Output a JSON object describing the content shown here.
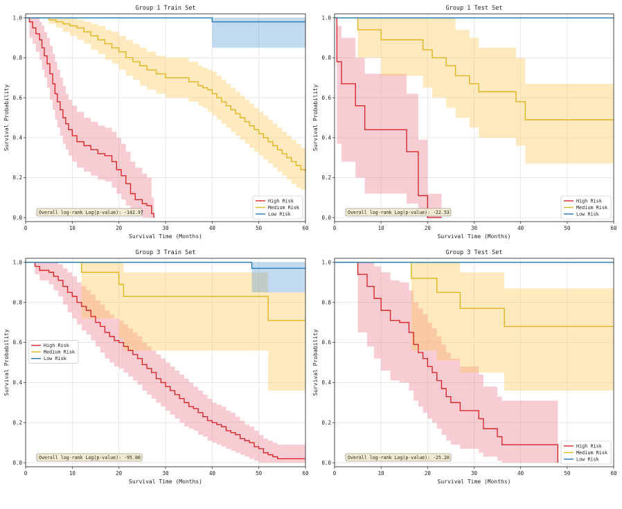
{
  "chart_data": [
    {
      "type": "line",
      "title": "Group 1 Train Set",
      "xlabel": "Survival Time (Months)",
      "ylabel": "Survival Probability",
      "xlim": [
        0,
        60
      ],
      "ylim": [
        -0.02,
        1.02
      ],
      "xticks": [
        "0",
        "10",
        "20",
        "30",
        "40",
        "50",
        "60"
      ],
      "yticks": [
        "0.0",
        "0.2",
        "0.4",
        "0.6",
        "0.8",
        "1.0"
      ],
      "grid": true,
      "legend": "bottom-right",
      "annotation": "Overall log-rank Log(p-value): -142.97",
      "series": [
        {
          "name": "High Risk",
          "color": "#d62728",
          "x": [
            0,
            0.8,
            1.5,
            2.2,
            3,
            3.5,
            4,
            4.6,
            5.2,
            5.8,
            6.3,
            6.8,
            7.4,
            8,
            8.6,
            9.2,
            10,
            11,
            12.5,
            14,
            15.5,
            17,
            18.5,
            19.5,
            20.5,
            21.5,
            22.5,
            23.5,
            25,
            26,
            27,
            27.5
          ],
          "y": [
            1,
            0.98,
            0.95,
            0.92,
            0.89,
            0.85,
            0.81,
            0.77,
            0.72,
            0.67,
            0.62,
            0.58,
            0.54,
            0.5,
            0.47,
            0.44,
            0.41,
            0.38,
            0.36,
            0.34,
            0.32,
            0.31,
            0.28,
            0.24,
            0.21,
            0.17,
            0.12,
            0.09,
            0.07,
            0.06,
            0.02,
            0.0
          ],
          "ci_upper": [
            1,
            1,
            1,
            1,
            0.98,
            0.96,
            0.93,
            0.9,
            0.86,
            0.82,
            0.78,
            0.74,
            0.7,
            0.66,
            0.62,
            0.59,
            0.56,
            0.53,
            0.5,
            0.48,
            0.46,
            0.45,
            0.43,
            0.4,
            0.37,
            0.33,
            0.28,
            0.25,
            0.22,
            0.2,
            0.1,
            0.06
          ],
          "ci_lower": [
            1,
            0.9,
            0.87,
            0.83,
            0.79,
            0.74,
            0.7,
            0.65,
            0.59,
            0.54,
            0.49,
            0.45,
            0.41,
            0.37,
            0.34,
            0.31,
            0.28,
            0.25,
            0.23,
            0.21,
            0.19,
            0.18,
            0.15,
            0.12,
            0.09,
            0.06,
            0.03,
            0.01,
            0.0,
            0.0,
            0.0,
            0.0
          ]
        },
        {
          "name": "Medium Risk",
          "color": "#e0b41c",
          "x": [
            0,
            5,
            6.5,
            8,
            9.5,
            11,
            12.5,
            14,
            15.5,
            17,
            18.5,
            20,
            21.5,
            23,
            24.5,
            26,
            28,
            30,
            33,
            35,
            37,
            38,
            39,
            40,
            41,
            42,
            43,
            44,
            45,
            46,
            47,
            48,
            49,
            50,
            51,
            52,
            53,
            54,
            55,
            56,
            57,
            58,
            59,
            60
          ],
          "y": [
            1,
            0.99,
            0.98,
            0.97,
            0.96,
            0.95,
            0.93,
            0.91,
            0.89,
            0.87,
            0.85,
            0.83,
            0.8,
            0.78,
            0.76,
            0.74,
            0.72,
            0.7,
            0.7,
            0.68,
            0.66,
            0.65,
            0.64,
            0.62,
            0.6,
            0.58,
            0.56,
            0.54,
            0.52,
            0.5,
            0.48,
            0.46,
            0.44,
            0.42,
            0.4,
            0.38,
            0.36,
            0.34,
            0.32,
            0.3,
            0.28,
            0.26,
            0.24,
            0.23
          ],
          "ci_upper": [
            1,
            1,
            1,
            1,
            1,
            0.99,
            0.98,
            0.97,
            0.96,
            0.94,
            0.93,
            0.91,
            0.89,
            0.87,
            0.85,
            0.83,
            0.81,
            0.8,
            0.8,
            0.78,
            0.76,
            0.75,
            0.74,
            0.73,
            0.71,
            0.69,
            0.67,
            0.65,
            0.63,
            0.61,
            0.59,
            0.57,
            0.55,
            0.53,
            0.51,
            0.49,
            0.47,
            0.45,
            0.43,
            0.41,
            0.39,
            0.37,
            0.35,
            0.34
          ],
          "ci_lower": [
            1,
            0.97,
            0.95,
            0.93,
            0.91,
            0.89,
            0.87,
            0.84,
            0.82,
            0.79,
            0.77,
            0.74,
            0.71,
            0.69,
            0.66,
            0.64,
            0.62,
            0.6,
            0.6,
            0.58,
            0.56,
            0.55,
            0.53,
            0.51,
            0.49,
            0.47,
            0.45,
            0.43,
            0.41,
            0.39,
            0.37,
            0.35,
            0.33,
            0.31,
            0.29,
            0.27,
            0.25,
            0.23,
            0.21,
            0.19,
            0.17,
            0.15,
            0.14,
            0.13
          ]
        },
        {
          "name": "Low Risk",
          "color": "#1f77b4",
          "x": [
            0,
            40,
            60
          ],
          "y": [
            1,
            0.98,
            0.98
          ],
          "ci_upper": [
            1,
            1,
            1
          ],
          "ci_lower": [
            1,
            0.85,
            0.85
          ]
        }
      ]
    },
    {
      "type": "line",
      "title": "Group 1 Test Set",
      "xlabel": "Survival Time (Months)",
      "ylabel": "Survival Probability",
      "xlim": [
        0,
        60
      ],
      "ylim": [
        -0.02,
        1.02
      ],
      "xticks": [
        "0",
        "10",
        "20",
        "30",
        "40",
        "50",
        "60"
      ],
      "yticks": [
        "0.0",
        "0.2",
        "0.4",
        "0.6",
        "0.8",
        "1.0"
      ],
      "grid": true,
      "legend": "bottom-right",
      "annotation": "Overall log-rank Log(p-value): -22.53",
      "series": [
        {
          "name": "High Risk",
          "color": "#d62728",
          "x": [
            0,
            0.5,
            1.5,
            4.5,
            6.5,
            10.5,
            15.5,
            18,
            20,
            23
          ],
          "y": [
            1,
            0.78,
            0.67,
            0.56,
            0.44,
            0.44,
            0.33,
            0.11,
            0.0,
            0.0
          ],
          "ci_upper": [
            1,
            0.96,
            0.9,
            0.8,
            0.72,
            0.72,
            0.62,
            0.39,
            0.12,
            0.12
          ],
          "ci_lower": [
            1,
            0.37,
            0.28,
            0.2,
            0.12,
            0.12,
            0.07,
            0.02,
            0.0,
            0.0
          ]
        },
        {
          "name": "Medium Risk",
          "color": "#e0b41c",
          "x": [
            0,
            4,
            5,
            10,
            17,
            19,
            21,
            24,
            26,
            29,
            31,
            35,
            39,
            41,
            60
          ],
          "y": [
            1,
            1,
            0.94,
            0.89,
            0.89,
            0.84,
            0.8,
            0.76,
            0.71,
            0.67,
            0.63,
            0.63,
            0.58,
            0.49,
            0.49
          ],
          "ci_upper": [
            1,
            1,
            1,
            1,
            1,
            1,
            1,
            1,
            0.94,
            0.9,
            0.85,
            0.85,
            0.8,
            0.67,
            0.67
          ],
          "ci_lower": [
            1,
            1,
            0.8,
            0.71,
            0.71,
            0.65,
            0.6,
            0.55,
            0.5,
            0.45,
            0.4,
            0.4,
            0.36,
            0.27,
            0.27
          ]
        },
        {
          "name": "Low Risk",
          "color": "#1f77b4",
          "x": [
            0,
            60
          ],
          "y": [
            1,
            1
          ],
          "ci_upper": [
            1,
            1
          ],
          "ci_lower": [
            1,
            1
          ]
        }
      ]
    },
    {
      "type": "line",
      "title": "Group 3 Train Set",
      "xlabel": "Survival Time (Months)",
      "ylabel": "Survival Probability",
      "xlim": [
        0,
        60
      ],
      "ylim": [
        -0.02,
        1.02
      ],
      "xticks": [
        "0",
        "10",
        "20",
        "30",
        "40",
        "50",
        "60"
      ],
      "yticks": [
        "0.0",
        "0.2",
        "0.4",
        "0.6",
        "0.8",
        "1.0"
      ],
      "grid": true,
      "legend": "center-left",
      "annotation": "Overall log-rank Log(p-value): -95.00",
      "series": [
        {
          "name": "High Risk",
          "color": "#d62728",
          "x": [
            0,
            2,
            3,
            5,
            6,
            7,
            8,
            9,
            10,
            11,
            12,
            13,
            14,
            15,
            16,
            17,
            18,
            19,
            20,
            21,
            22,
            23,
            24,
            25,
            26,
            27,
            28,
            29,
            30,
            31,
            32,
            33,
            34,
            35,
            36,
            37,
            38,
            39,
            40,
            41,
            42,
            43,
            44,
            45,
            46,
            47,
            48,
            49,
            50,
            51,
            52,
            53,
            54,
            56,
            58,
            60
          ],
          "y": [
            1,
            0.98,
            0.96,
            0.95,
            0.93,
            0.91,
            0.88,
            0.85,
            0.83,
            0.8,
            0.78,
            0.76,
            0.73,
            0.7,
            0.68,
            0.65,
            0.63,
            0.61,
            0.6,
            0.58,
            0.56,
            0.54,
            0.52,
            0.49,
            0.47,
            0.45,
            0.42,
            0.4,
            0.38,
            0.36,
            0.34,
            0.32,
            0.3,
            0.28,
            0.27,
            0.25,
            0.23,
            0.21,
            0.2,
            0.19,
            0.18,
            0.16,
            0.15,
            0.14,
            0.12,
            0.11,
            0.1,
            0.08,
            0.07,
            0.05,
            0.04,
            0.03,
            0.02,
            0.02,
            0.02,
            0.02
          ],
          "ci_upper": [
            1,
            1,
            1,
            1,
            1,
            0.99,
            0.97,
            0.95,
            0.93,
            0.9,
            0.88,
            0.86,
            0.84,
            0.81,
            0.79,
            0.76,
            0.74,
            0.72,
            0.71,
            0.69,
            0.67,
            0.65,
            0.63,
            0.6,
            0.58,
            0.56,
            0.54,
            0.52,
            0.5,
            0.48,
            0.46,
            0.44,
            0.42,
            0.4,
            0.38,
            0.36,
            0.34,
            0.32,
            0.3,
            0.29,
            0.28,
            0.26,
            0.25,
            0.23,
            0.21,
            0.19,
            0.18,
            0.16,
            0.14,
            0.12,
            0.11,
            0.1,
            0.09,
            0.09,
            0.09,
            0.09
          ],
          "ci_lower": [
            1,
            0.94,
            0.91,
            0.89,
            0.86,
            0.83,
            0.79,
            0.75,
            0.72,
            0.69,
            0.66,
            0.64,
            0.61,
            0.58,
            0.55,
            0.52,
            0.5,
            0.48,
            0.47,
            0.45,
            0.43,
            0.41,
            0.39,
            0.36,
            0.34,
            0.32,
            0.3,
            0.28,
            0.26,
            0.24,
            0.22,
            0.2,
            0.18,
            0.17,
            0.16,
            0.14,
            0.13,
            0.11,
            0.1,
            0.09,
            0.08,
            0.07,
            0.06,
            0.05,
            0.04,
            0.03,
            0.02,
            0.01,
            0.0,
            0.0,
            0.0,
            0.0,
            0.0,
            0.0,
            0.0,
            0.0
          ]
        },
        {
          "name": "Medium Risk",
          "color": "#e0b41c",
          "x": [
            0,
            12,
            20,
            21,
            52,
            60
          ],
          "y": [
            1,
            0.95,
            0.89,
            0.83,
            0.71,
            0.71
          ],
          "ci_upper": [
            1,
            1,
            1,
            0.95,
            0.85,
            0.85
          ],
          "ci_lower": [
            1,
            0.72,
            0.62,
            0.56,
            0.36,
            0.36
          ]
        },
        {
          "name": "Low Risk",
          "color": "#1f77b4",
          "x": [
            0,
            48.5,
            60
          ],
          "y": [
            1,
            0.97,
            0.97
          ],
          "ci_upper": [
            1,
            1,
            1
          ],
          "ci_lower": [
            1,
            0.85,
            0.85
          ]
        }
      ]
    },
    {
      "type": "line",
      "title": "Group 3 Test Set",
      "xlabel": "Survival Time (Months)",
      "ylabel": "Survival Probability",
      "xlim": [
        0,
        60
      ],
      "ylim": [
        -0.02,
        1.02
      ],
      "xticks": [
        "0",
        "10",
        "20",
        "30",
        "40",
        "50",
        "60"
      ],
      "yticks": [
        "0.0",
        "0.2",
        "0.4",
        "0.6",
        "0.8",
        "1.0"
      ],
      "grid": true,
      "legend": "bottom-right",
      "annotation": "Overall log-rank Log(p-value): -25.20",
      "series": [
        {
          "name": "High Risk",
          "color": "#d62728",
          "x": [
            0,
            5,
            7,
            8.5,
            10,
            12,
            14,
            16,
            17,
            18,
            19,
            20,
            21,
            22,
            23,
            24,
            25,
            27,
            29,
            31,
            32,
            35,
            36,
            37,
            48
          ],
          "y": [
            1,
            0.94,
            0.88,
            0.82,
            0.76,
            0.71,
            0.7,
            0.65,
            0.59,
            0.55,
            0.52,
            0.48,
            0.45,
            0.41,
            0.37,
            0.33,
            0.3,
            0.26,
            0.26,
            0.22,
            0.17,
            0.13,
            0.09,
            0.09,
            0.0
          ],
          "ci_upper": [
            1,
            1,
            1,
            0.98,
            0.95,
            0.91,
            0.9,
            0.86,
            0.8,
            0.77,
            0.74,
            0.7,
            0.67,
            0.63,
            0.59,
            0.55,
            0.52,
            0.48,
            0.48,
            0.44,
            0.38,
            0.33,
            0.31,
            0.31,
            0.31
          ],
          "ci_lower": [
            1,
            0.65,
            0.58,
            0.52,
            0.46,
            0.41,
            0.4,
            0.36,
            0.31,
            0.28,
            0.25,
            0.22,
            0.2,
            0.17,
            0.14,
            0.11,
            0.09,
            0.07,
            0.07,
            0.05,
            0.03,
            0.01,
            0.0,
            0.0,
            0.0
          ]
        },
        {
          "name": "Medium Risk",
          "color": "#e0b41c",
          "x": [
            0,
            16.5,
            22,
            27,
            30,
            36.5,
            60
          ],
          "y": [
            1,
            0.92,
            0.85,
            0.77,
            0.77,
            0.68,
            0.68
          ],
          "ci_upper": [
            1,
            1,
            1,
            0.95,
            0.95,
            0.87,
            0.87
          ],
          "ci_lower": [
            1,
            0.56,
            0.51,
            0.45,
            0.45,
            0.36,
            0.36
          ]
        },
        {
          "name": "Low Risk",
          "color": "#1f77b4",
          "x": [
            0,
            60
          ],
          "y": [
            1,
            1
          ],
          "ci_upper": [
            1,
            1
          ],
          "ci_lower": [
            1,
            1
          ]
        }
      ]
    }
  ]
}
